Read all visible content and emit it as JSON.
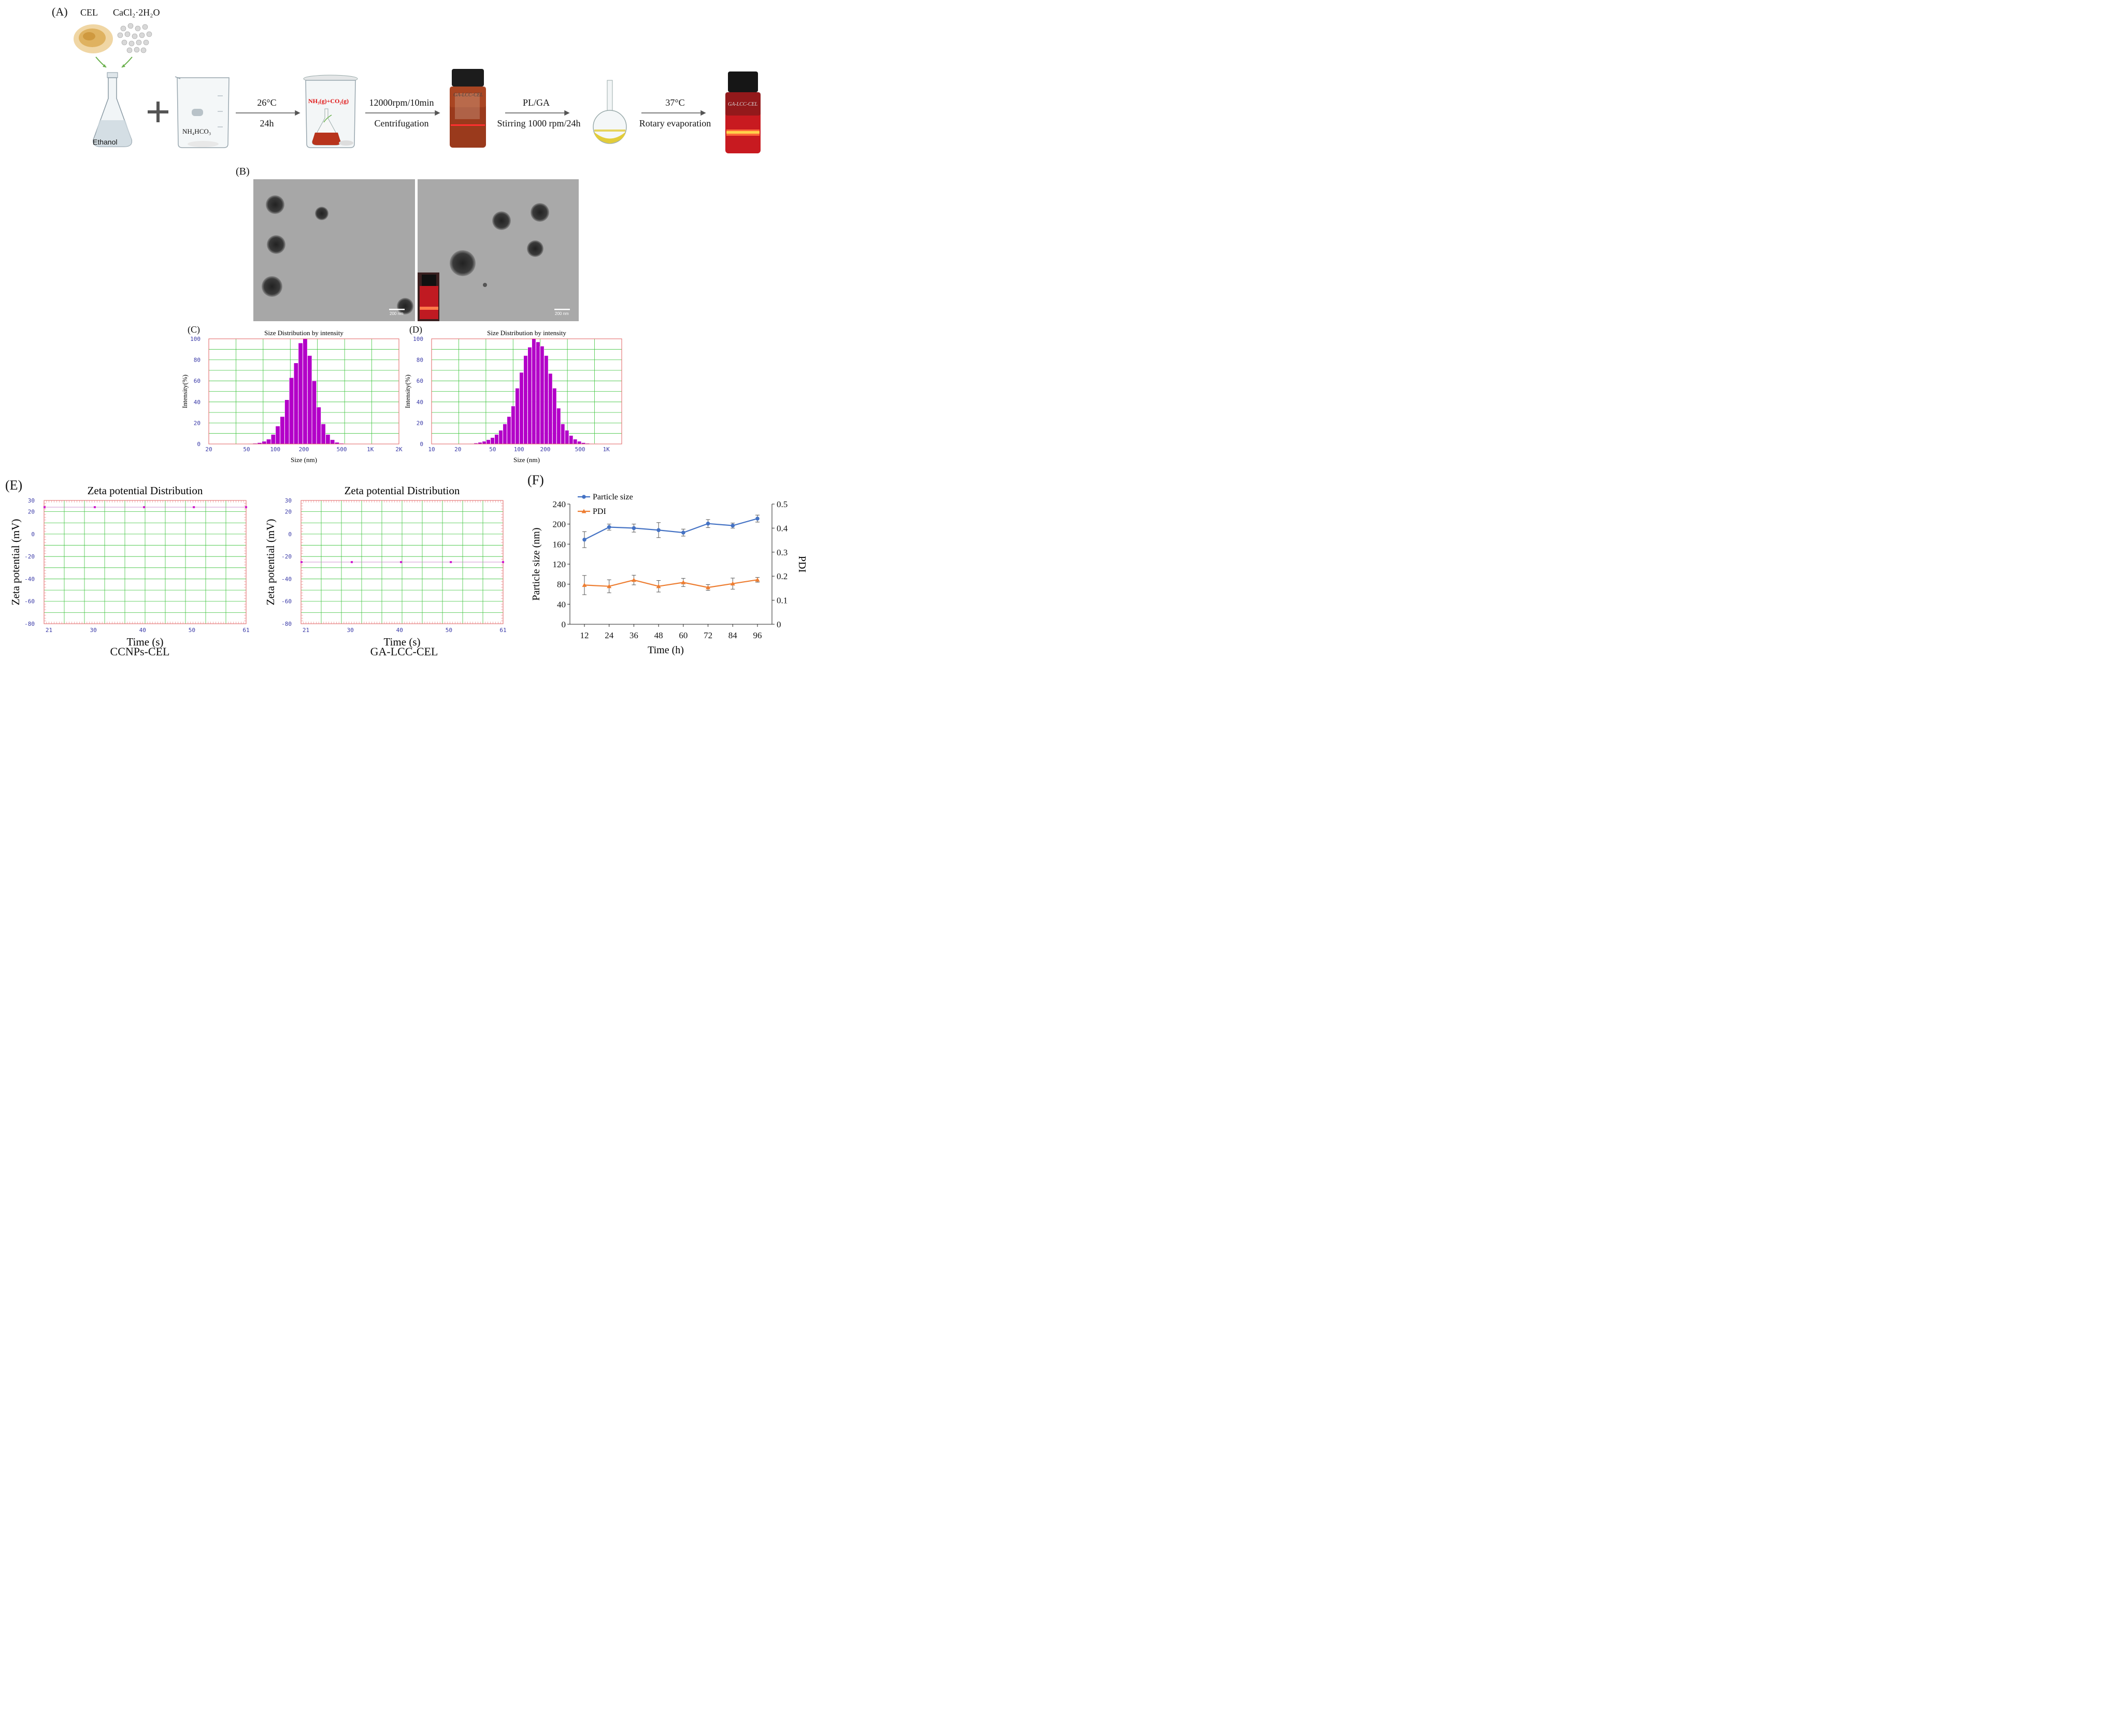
{
  "panel_a": {
    "label": "(A)",
    "reagent_1": "CEL",
    "reagent_2": "CaCl₂·2H₂O",
    "flask_label": "Ethanol",
    "beaker_label": "NH₄HCO₃",
    "beaker_inner_label": "NH₃(g)+CO₂(g)",
    "vial_label": "GA-LCC-CEL",
    "step1": {
      "line1": "26°C",
      "line2": "24h"
    },
    "step2": {
      "line1": "12000rpm/10min",
      "line2": "Centrifugation"
    },
    "step3": {
      "line1": "PL/GA",
      "line2": "Stirring 1000 rpm/24h"
    },
    "step4": {
      "line1": "37°C",
      "line2": "Rotary evaporation"
    }
  },
  "panel_b": {
    "label": "(B)",
    "scale_left": "200 nm",
    "scale_right": "200 nm"
  },
  "panel_e": {
    "label": "(E)",
    "caption_left": "CCNPs-CEL",
    "caption_right": "GA-LCC-CEL"
  },
  "colors": {
    "dls_bar": "#b300c8",
    "dls_grid": "#3cc43c",
    "dls_frame": "#e06060",
    "particle": "#4472c4",
    "pdi": "#ed7d31",
    "tick_blue": "#3a3aa8"
  },
  "chart_data": [
    {
      "id": "C",
      "label": "(C)",
      "type": "bar",
      "title": "Size Distribution by intensity",
      "xlabel": "Size (nm)",
      "ylabel": "Intensity(%)",
      "x_scale": "log",
      "xlim": [
        20,
        2000
      ],
      "ylim": [
        0,
        100
      ],
      "xtick_values": [
        20,
        50,
        100,
        200,
        500,
        1000,
        2000
      ],
      "xtick_labels": [
        "20",
        "50",
        "100",
        "200",
        "500",
        "1K",
        "2K"
      ],
      "ytick_values": [
        0,
        20,
        40,
        60,
        80,
        100
      ],
      "ytick_labels": [
        "0",
        "20",
        "40",
        "60",
        "80",
        "100"
      ],
      "bin_centers": [
        55,
        61.5,
        68.7,
        76.7,
        85.6,
        95.6,
        106.7,
        119.2,
        133.1,
        148.6,
        166,
        185.3,
        206.9,
        231.1,
        258,
        288.1,
        321.7,
        359.2,
        401.1,
        447.9,
        500.2,
        558.5,
        623.6
      ],
      "values": [
        0.3,
        0.6,
        1.2,
        2.5,
        4.5,
        9,
        17,
        26,
        42,
        63,
        77,
        96,
        100,
        84,
        60,
        35,
        19,
        9,
        4,
        1.5,
        0.6,
        0.3,
        0.2
      ]
    },
    {
      "id": "D",
      "label": "(D)",
      "type": "bar",
      "title": "Size Distribution by intensity",
      "xlabel": "Size (nm)",
      "ylabel": "Intensity(%)",
      "x_scale": "log",
      "xlim": [
        10,
        1500
      ],
      "ylim": [
        0,
        100
      ],
      "xtick_values": [
        10,
        20,
        50,
        100,
        200,
        500,
        1000
      ],
      "xtick_labels": [
        "10",
        "20",
        "50",
        "100",
        "200",
        "500",
        "1K"
      ],
      "ytick_values": [
        0,
        20,
        40,
        60,
        80,
        100
      ],
      "ytick_labels": [
        "0",
        "20",
        "40",
        "60",
        "80",
        "100"
      ],
      "bin_centers": [
        26,
        29,
        32.3,
        36,
        40.2,
        44.8,
        50,
        55.7,
        62.2,
        69.3,
        77.3,
        86.2,
        96.1,
        107.2,
        119.5,
        133.3,
        148.6,
        165.7,
        184.8,
        206.1,
        229.8,
        256.3,
        285.8,
        318.7,
        355.4,
        396.4,
        442,
        492.9,
        549.7,
        613,
        683.6,
        762.3,
        850
      ],
      "values": [
        0.2,
        0.4,
        0.8,
        1.5,
        2.5,
        4,
        6,
        9,
        13,
        19,
        26,
        36,
        53,
        68,
        84,
        92,
        100,
        97,
        93,
        84,
        67,
        53,
        34,
        19,
        13,
        8,
        4.5,
        2.5,
        1.2,
        0.6,
        0.4,
        0.3,
        0.2
      ]
    },
    {
      "id": "E1",
      "type": "line",
      "title": "Zeta potential Distribution",
      "xlabel": "Time (s)",
      "ylabel": "Zeta potential (mV)",
      "xlim": [
        20,
        61
      ],
      "ylim": [
        -80,
        30
      ],
      "xtick_values": [
        21,
        30,
        40,
        50,
        61
      ],
      "xtick_labels": [
        "21",
        "30",
        "40",
        "50",
        "61"
      ],
      "ytick_values": [
        30,
        20,
        0,
        -20,
        -40,
        -60,
        -80
      ],
      "ytick_labels": [
        "30",
        "20",
        "0",
        "-20",
        "-40",
        "-60",
        "-80"
      ],
      "x": [
        20.1,
        30.3,
        40.3,
        50.4,
        61
      ],
      "y": [
        24,
        24,
        24,
        24,
        24
      ]
    },
    {
      "id": "E2",
      "type": "line",
      "title": "Zeta potential Distribution",
      "xlabel": "Time (s)",
      "ylabel": "Zeta potential (mV)",
      "xlim": [
        20,
        61
      ],
      "ylim": [
        -80,
        30
      ],
      "xtick_values": [
        21,
        30,
        40,
        50,
        61
      ],
      "xtick_labels": [
        "21",
        "30",
        "40",
        "50",
        "61"
      ],
      "ytick_values": [
        30,
        20,
        0,
        -20,
        -40,
        -60,
        -80
      ],
      "ytick_labels": [
        "30",
        "20",
        "0",
        "-20",
        "-40",
        "-60",
        "-80"
      ],
      "x": [
        20.1,
        30.3,
        40.3,
        50.4,
        61
      ],
      "y": [
        -25,
        -25,
        -25,
        -25,
        -25
      ]
    },
    {
      "id": "F",
      "label": "(F)",
      "type": "line",
      "xlabel": "Time  (h)",
      "ylabel": "Particle size (nm)",
      "y2label": "PDI",
      "categories": [
        12,
        24,
        36,
        48,
        60,
        72,
        84,
        96
      ],
      "ylim": [
        0,
        240
      ],
      "y2lim": [
        0,
        0.5
      ],
      "ytick_values": [
        0,
        40,
        80,
        120,
        160,
        200,
        240
      ],
      "ytick_labels": [
        "0",
        "40",
        "80",
        "120",
        "160",
        "200",
        "240"
      ],
      "y2tick_values": [
        0,
        0.1,
        0.2,
        0.3,
        0.4,
        0.5
      ],
      "y2tick_labels": [
        "0",
        "0.1",
        "0.2",
        "0.3",
        "0.4",
        "0.5"
      ],
      "legend_position": "top-left",
      "series": [
        {
          "name": "Particle size",
          "axis": "left",
          "marker": "circle",
          "color": "#4472c4",
          "values": [
            169,
            194,
            192,
            188,
            183,
            201,
            197,
            211
          ],
          "errors": [
            16,
            6,
            8,
            15,
            7,
            8,
            5,
            7
          ]
        },
        {
          "name": "PDI",
          "axis": "right",
          "marker": "triangle",
          "color": "#ed7d31",
          "values": [
            0.163,
            0.158,
            0.184,
            0.158,
            0.174,
            0.153,
            0.169,
            0.185
          ],
          "errors": [
            0.04,
            0.027,
            0.02,
            0.024,
            0.017,
            0.012,
            0.023,
            0.01
          ]
        }
      ]
    }
  ]
}
